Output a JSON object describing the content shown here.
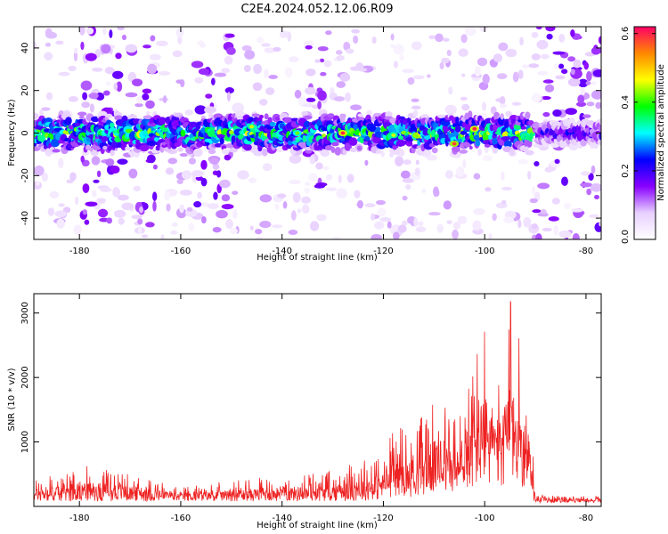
{
  "title": "C2E4.2024.052.12.06.R09",
  "chart_data": [
    {
      "type": "heatmap",
      "xlabel": "Height of straight line (km)",
      "ylabel": "Frequency (Hz)",
      "xlim": [
        -189,
        -77
      ],
      "ylim": [
        -50,
        50
      ],
      "xticks": [
        -180,
        -160,
        -140,
        -120,
        -100,
        -80
      ],
      "yticks": [
        -40,
        -20,
        0,
        20,
        40
      ],
      "colorbar": {
        "label": "Normalized spectral amplitude",
        "range": [
          0.0,
          0.62
        ],
        "ticks": [
          "0.0",
          "0.2",
          "0.4",
          "0.6"
        ],
        "colormap": [
          "#ffffff",
          "#e8d0ff",
          "#8800ff",
          "#0000ff",
          "#00ffff",
          "#00ff00",
          "#ffff00",
          "#ff8800",
          "#ff0066"
        ]
      },
      "bands": [
        {
          "x_start": -189,
          "x_end": -91,
          "center_hz": 0,
          "half_width_hz": 8,
          "peak_amplitude": 0.55
        },
        {
          "x_start": -90,
          "x_end": -77,
          "center_hz": 0,
          "half_width_hz": 5,
          "peak_amplitude": 0.3
        }
      ]
    },
    {
      "type": "line",
      "xlabel": "Height of straight line (km)",
      "ylabel": "SNR (10 * v/v)",
      "xlim": [
        -189,
        -77
      ],
      "ylim": [
        0,
        3300
      ],
      "xticks": [
        -180,
        -160,
        -140,
        -120,
        -100,
        -80
      ],
      "yticks": [
        1000,
        2000,
        3000
      ],
      "color": "#ee2222",
      "envelope": {
        "x": [
          -189,
          -180,
          -170,
          -160,
          -150,
          -140,
          -130,
          -125,
          -120,
          -117,
          -115,
          -110,
          -105,
          -100,
          -97,
          -95,
          -93,
          -91,
          -90,
          -85,
          -77
        ],
        "y": [
          400,
          650,
          500,
          300,
          400,
          480,
          550,
          700,
          850,
          1400,
          1150,
          1700,
          1450,
          2900,
          2100,
          3250,
          2600,
          1800,
          180,
          160,
          170
        ]
      }
    }
  ]
}
